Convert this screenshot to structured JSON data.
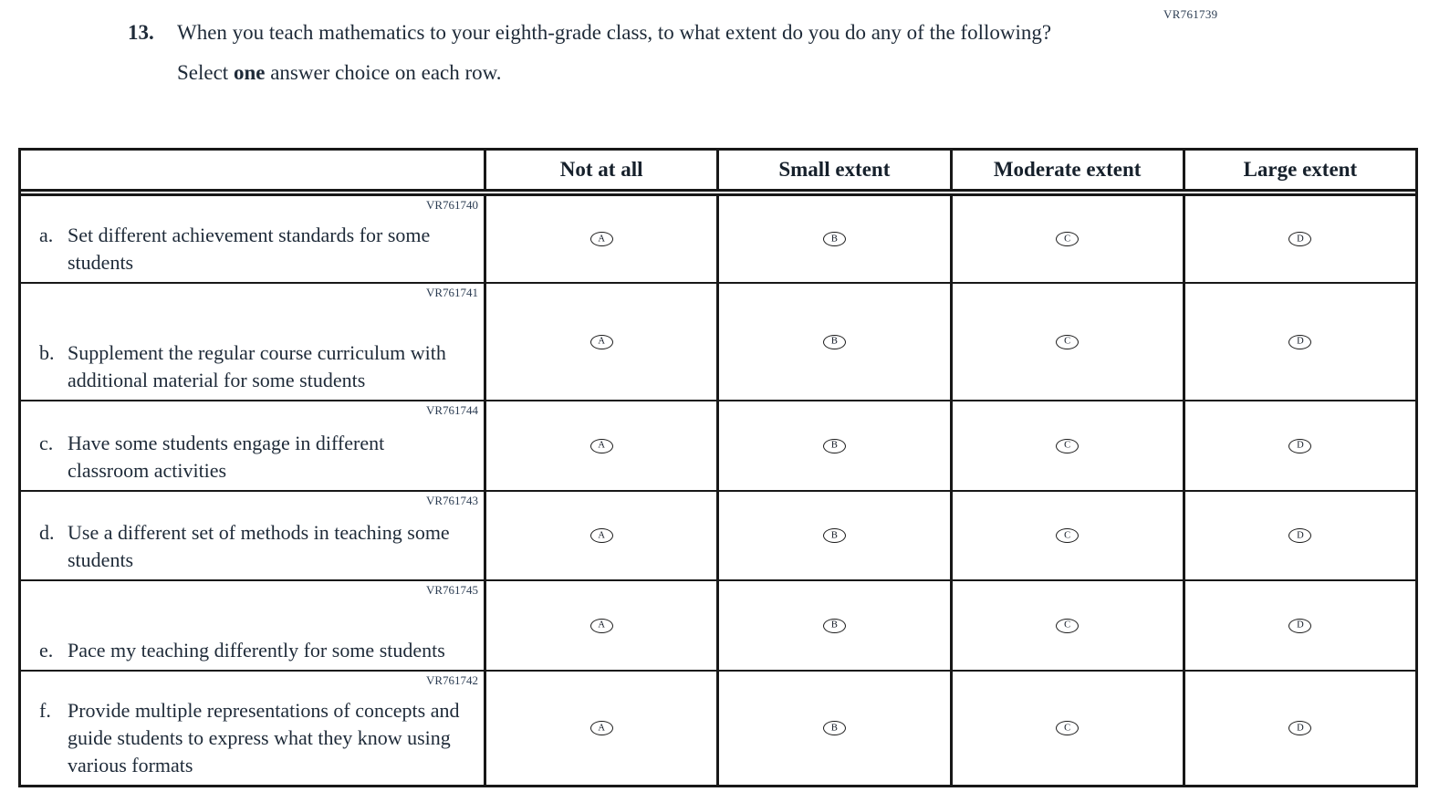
{
  "page": {
    "top_right_code": "VR761739",
    "question_number": "13.",
    "question_text": "When you teach mathematics to your eighth-grade class, to what extent do you do any of the following?",
    "instruction_prefix": "Select ",
    "instruction_bold": "one",
    "instruction_suffix": " answer choice on each row."
  },
  "table": {
    "columns": [
      "",
      "Not at all",
      "Small extent",
      "Moderate extent",
      "Large extent"
    ],
    "choices": [
      "A",
      "B",
      "C",
      "D"
    ],
    "rows": [
      {
        "letter": "a.",
        "code": "VR761740",
        "text": "Set different achievement standards for some students"
      },
      {
        "letter": "b.",
        "code": "VR761741",
        "text": "Supplement the regular course curriculum with additional material for some students"
      },
      {
        "letter": "c.",
        "code": "VR761744",
        "text": "Have some students engage in different classroom activities"
      },
      {
        "letter": "d.",
        "code": "VR761743",
        "text": "Use a different set of methods in teaching some students"
      },
      {
        "letter": "e.",
        "code": "VR761745",
        "text": "Pace my teaching differently for some students"
      },
      {
        "letter": "f.",
        "code": "VR761742",
        "text": "Provide multiple representations of concepts and guide students to express what they know using various formats"
      }
    ]
  }
}
